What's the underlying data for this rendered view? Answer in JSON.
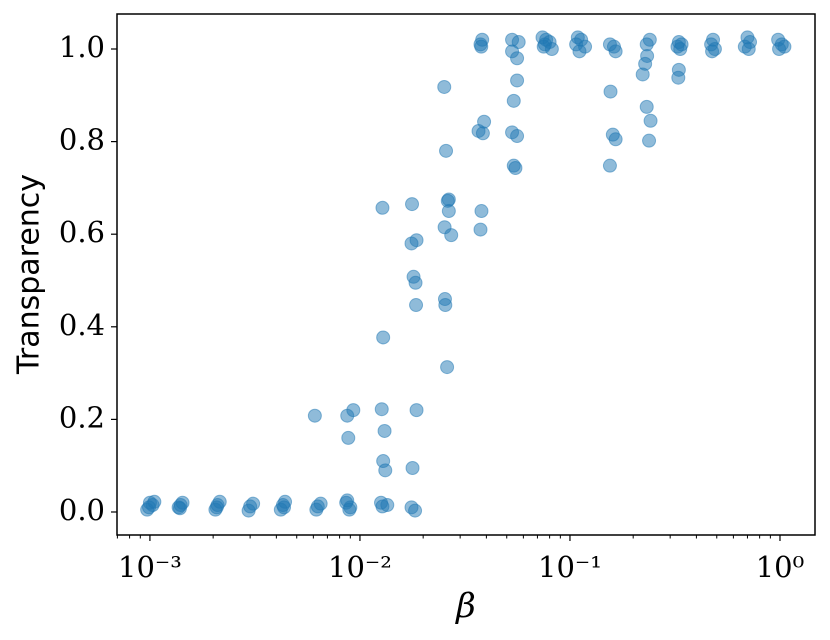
{
  "chart_data": {
    "type": "scatter",
    "xlabel": "β",
    "ylabel": "Transparency",
    "xscale": "log",
    "xlim": [
      0.000697,
      1.468
    ],
    "ylim": [
      -0.0497,
      1.0756
    ],
    "xticks": [
      {
        "value": 0.001,
        "label": "10⁻³"
      },
      {
        "value": 0.01,
        "label": "10⁻²"
      },
      {
        "value": 0.1,
        "label": "10⁻¹"
      },
      {
        "value": 1,
        "label": "10⁰"
      }
    ],
    "xticks_minor": [
      0.0007,
      0.0008,
      0.0009,
      0.002,
      0.003,
      0.004,
      0.005,
      0.006,
      0.007,
      0.008,
      0.009,
      0.02,
      0.03,
      0.04,
      0.05,
      0.06,
      0.07,
      0.08,
      0.09,
      0.2,
      0.3,
      0.4,
      0.5,
      0.6,
      0.7,
      0.8,
      0.9
    ],
    "yticks": [
      {
        "value": 0,
        "label": "0.0"
      },
      0.2,
      0.4,
      0.6,
      0.8,
      {
        "value": 1,
        "label": "1.0"
      }
    ],
    "color": "#1f77b4",
    "alpha": 0.5,
    "x": [
      0.00097,
      0.001,
      0.00103,
      0.00099,
      0.00105,
      0.00137,
      0.0014,
      0.00143,
      0.00139,
      0.00205,
      0.0021,
      0.00215,
      0.00208,
      0.00295,
      0.003,
      0.0031,
      0.0042,
      0.0043,
      0.0044,
      0.00435,
      0.0061,
      0.0062,
      0.0063,
      0.0065,
      0.0087,
      0.0088,
      0.0093,
      0.0086,
      0.009,
      0.0089,
      0.0087,
      0.0128,
      0.0129,
      0.0127,
      0.0131,
      0.0129,
      0.0132,
      0.0126,
      0.0128,
      0.0135,
      0.0177,
      0.0176,
      0.0186,
      0.018,
      0.0184,
      0.0185,
      0.0186,
      0.0178,
      0.0176,
      0.0183,
      0.0252,
      0.0257,
      0.0265,
      0.0262,
      0.0265,
      0.0253,
      0.0272,
      0.0254,
      0.0255,
      0.026,
      0.0382,
      0.0375,
      0.0378,
      0.039,
      0.0367,
      0.0385,
      0.0379,
      0.0375,
      0.053,
      0.057,
      0.053,
      0.056,
      0.056,
      0.054,
      0.053,
      0.056,
      0.054,
      0.055,
      0.074,
      0.077,
      0.08,
      0.076,
      0.082,
      0.075,
      0.109,
      0.113,
      0.107,
      0.118,
      0.111,
      0.155,
      0.162,
      0.165,
      0.156,
      0.16,
      0.165,
      0.155,
      0.24,
      0.232,
      0.233,
      0.228,
      0.222,
      0.232,
      0.242,
      0.238,
      0.33,
      0.34,
      0.325,
      0.335,
      0.33,
      0.328,
      0.48,
      0.47,
      0.49,
      0.475,
      0.7,
      0.72,
      0.68,
      0.71,
      0.98,
      1.02,
      1.05,
      0.99
    ],
    "y": [
      0.005,
      0.02,
      0.015,
      0.01,
      0.022,
      0.01,
      0.015,
      0.02,
      0.008,
      0.005,
      0.015,
      0.022,
      0.01,
      0.003,
      0.012,
      0.018,
      0.005,
      0.015,
      0.022,
      0.01,
      0.208,
      0.005,
      0.012,
      0.018,
      0.208,
      0.16,
      0.22,
      0.02,
      0.01,
      0.005,
      0.025,
      0.657,
      0.377,
      0.222,
      0.175,
      0.11,
      0.09,
      0.02,
      0.012,
      0.015,
      0.665,
      0.58,
      0.587,
      0.508,
      0.495,
      0.447,
      0.22,
      0.095,
      0.01,
      0.003,
      0.918,
      0.78,
      0.675,
      0.672,
      0.65,
      0.615,
      0.598,
      0.46,
      0.447,
      0.313,
      1.02,
      1.01,
      1.005,
      0.843,
      0.823,
      0.818,
      0.65,
      0.61,
      1.02,
      1.015,
      0.995,
      0.98,
      0.932,
      0.888,
      0.82,
      0.812,
      0.748,
      0.743,
      1.025,
      1.02,
      1.015,
      1.01,
      1.0,
      1.005,
      1.025,
      1.02,
      1.01,
      1.005,
      0.995,
      1.01,
      1.005,
      0.995,
      0.908,
      0.815,
      0.805,
      0.748,
      1.02,
      1.01,
      0.985,
      0.968,
      0.945,
      0.875,
      0.845,
      0.802,
      1.015,
      1.01,
      1.005,
      1.0,
      0.955,
      0.938,
      1.02,
      1.01,
      1.0,
      0.995,
      1.025,
      1.015,
      1.005,
      1.0,
      1.02,
      1.01,
      1.005,
      1.0
    ]
  }
}
